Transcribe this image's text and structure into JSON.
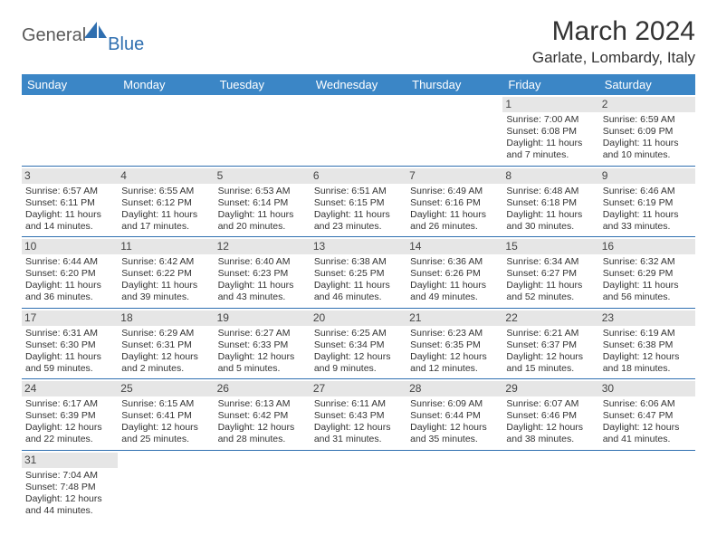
{
  "brand": {
    "name1": "General",
    "name2": "Blue"
  },
  "title": "March 2024",
  "location": "Garlate, Lombardy, Italy",
  "colors": {
    "header_bg": "#3b86c6",
    "rule": "#2f6fb0",
    "daynum_bg": "#e6e6e6",
    "text": "#333333"
  },
  "days_of_week": [
    "Sunday",
    "Monday",
    "Tuesday",
    "Wednesday",
    "Thursday",
    "Friday",
    "Saturday"
  ],
  "weeks": [
    [
      null,
      null,
      null,
      null,
      null,
      {
        "n": "1",
        "sr": "Sunrise: 7:00 AM",
        "ss": "Sunset: 6:08 PM",
        "dl": "Daylight: 11 hours and 7 minutes."
      },
      {
        "n": "2",
        "sr": "Sunrise: 6:59 AM",
        "ss": "Sunset: 6:09 PM",
        "dl": "Daylight: 11 hours and 10 minutes."
      }
    ],
    [
      {
        "n": "3",
        "sr": "Sunrise: 6:57 AM",
        "ss": "Sunset: 6:11 PM",
        "dl": "Daylight: 11 hours and 14 minutes."
      },
      {
        "n": "4",
        "sr": "Sunrise: 6:55 AM",
        "ss": "Sunset: 6:12 PM",
        "dl": "Daylight: 11 hours and 17 minutes."
      },
      {
        "n": "5",
        "sr": "Sunrise: 6:53 AM",
        "ss": "Sunset: 6:14 PM",
        "dl": "Daylight: 11 hours and 20 minutes."
      },
      {
        "n": "6",
        "sr": "Sunrise: 6:51 AM",
        "ss": "Sunset: 6:15 PM",
        "dl": "Daylight: 11 hours and 23 minutes."
      },
      {
        "n": "7",
        "sr": "Sunrise: 6:49 AM",
        "ss": "Sunset: 6:16 PM",
        "dl": "Daylight: 11 hours and 26 minutes."
      },
      {
        "n": "8",
        "sr": "Sunrise: 6:48 AM",
        "ss": "Sunset: 6:18 PM",
        "dl": "Daylight: 11 hours and 30 minutes."
      },
      {
        "n": "9",
        "sr": "Sunrise: 6:46 AM",
        "ss": "Sunset: 6:19 PM",
        "dl": "Daylight: 11 hours and 33 minutes."
      }
    ],
    [
      {
        "n": "10",
        "sr": "Sunrise: 6:44 AM",
        "ss": "Sunset: 6:20 PM",
        "dl": "Daylight: 11 hours and 36 minutes."
      },
      {
        "n": "11",
        "sr": "Sunrise: 6:42 AM",
        "ss": "Sunset: 6:22 PM",
        "dl": "Daylight: 11 hours and 39 minutes."
      },
      {
        "n": "12",
        "sr": "Sunrise: 6:40 AM",
        "ss": "Sunset: 6:23 PM",
        "dl": "Daylight: 11 hours and 43 minutes."
      },
      {
        "n": "13",
        "sr": "Sunrise: 6:38 AM",
        "ss": "Sunset: 6:25 PM",
        "dl": "Daylight: 11 hours and 46 minutes."
      },
      {
        "n": "14",
        "sr": "Sunrise: 6:36 AM",
        "ss": "Sunset: 6:26 PM",
        "dl": "Daylight: 11 hours and 49 minutes."
      },
      {
        "n": "15",
        "sr": "Sunrise: 6:34 AM",
        "ss": "Sunset: 6:27 PM",
        "dl": "Daylight: 11 hours and 52 minutes."
      },
      {
        "n": "16",
        "sr": "Sunrise: 6:32 AM",
        "ss": "Sunset: 6:29 PM",
        "dl": "Daylight: 11 hours and 56 minutes."
      }
    ],
    [
      {
        "n": "17",
        "sr": "Sunrise: 6:31 AM",
        "ss": "Sunset: 6:30 PM",
        "dl": "Daylight: 11 hours and 59 minutes."
      },
      {
        "n": "18",
        "sr": "Sunrise: 6:29 AM",
        "ss": "Sunset: 6:31 PM",
        "dl": "Daylight: 12 hours and 2 minutes."
      },
      {
        "n": "19",
        "sr": "Sunrise: 6:27 AM",
        "ss": "Sunset: 6:33 PM",
        "dl": "Daylight: 12 hours and 5 minutes."
      },
      {
        "n": "20",
        "sr": "Sunrise: 6:25 AM",
        "ss": "Sunset: 6:34 PM",
        "dl": "Daylight: 12 hours and 9 minutes."
      },
      {
        "n": "21",
        "sr": "Sunrise: 6:23 AM",
        "ss": "Sunset: 6:35 PM",
        "dl": "Daylight: 12 hours and 12 minutes."
      },
      {
        "n": "22",
        "sr": "Sunrise: 6:21 AM",
        "ss": "Sunset: 6:37 PM",
        "dl": "Daylight: 12 hours and 15 minutes."
      },
      {
        "n": "23",
        "sr": "Sunrise: 6:19 AM",
        "ss": "Sunset: 6:38 PM",
        "dl": "Daylight: 12 hours and 18 minutes."
      }
    ],
    [
      {
        "n": "24",
        "sr": "Sunrise: 6:17 AM",
        "ss": "Sunset: 6:39 PM",
        "dl": "Daylight: 12 hours and 22 minutes."
      },
      {
        "n": "25",
        "sr": "Sunrise: 6:15 AM",
        "ss": "Sunset: 6:41 PM",
        "dl": "Daylight: 12 hours and 25 minutes."
      },
      {
        "n": "26",
        "sr": "Sunrise: 6:13 AM",
        "ss": "Sunset: 6:42 PM",
        "dl": "Daylight: 12 hours and 28 minutes."
      },
      {
        "n": "27",
        "sr": "Sunrise: 6:11 AM",
        "ss": "Sunset: 6:43 PM",
        "dl": "Daylight: 12 hours and 31 minutes."
      },
      {
        "n": "28",
        "sr": "Sunrise: 6:09 AM",
        "ss": "Sunset: 6:44 PM",
        "dl": "Daylight: 12 hours and 35 minutes."
      },
      {
        "n": "29",
        "sr": "Sunrise: 6:07 AM",
        "ss": "Sunset: 6:46 PM",
        "dl": "Daylight: 12 hours and 38 minutes."
      },
      {
        "n": "30",
        "sr": "Sunrise: 6:06 AM",
        "ss": "Sunset: 6:47 PM",
        "dl": "Daylight: 12 hours and 41 minutes."
      }
    ],
    [
      {
        "n": "31",
        "sr": "Sunrise: 7:04 AM",
        "ss": "Sunset: 7:48 PM",
        "dl": "Daylight: 12 hours and 44 minutes."
      },
      null,
      null,
      null,
      null,
      null,
      null
    ]
  ]
}
